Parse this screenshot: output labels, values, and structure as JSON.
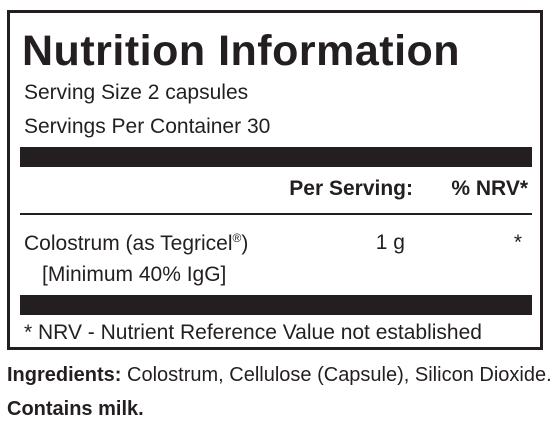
{
  "panel": {
    "title": "Nutrition Information",
    "serving_size": "Serving Size 2 capsules",
    "servings_per_container": "Servings Per Container 30",
    "header": {
      "per_serving": "Per Serving:",
      "nrv": "% NRV*"
    },
    "rows": [
      {
        "name": "Colostrum (as Tegricel",
        "registered_mark": "®",
        "name_close": ")",
        "note": "[Minimum 40% IgG]",
        "amount": "1 g",
        "nrv": "*"
      }
    ],
    "footnote": "* NRV - Nutrient Reference Value not established"
  },
  "ingredients": {
    "label": "Ingredients:",
    "text": "Colostrum, Cellulose (Capsule), Silicon Dioxide."
  },
  "allergen": "Contains milk.",
  "colors": {
    "ink": "#231f20",
    "background": "#ffffff"
  }
}
